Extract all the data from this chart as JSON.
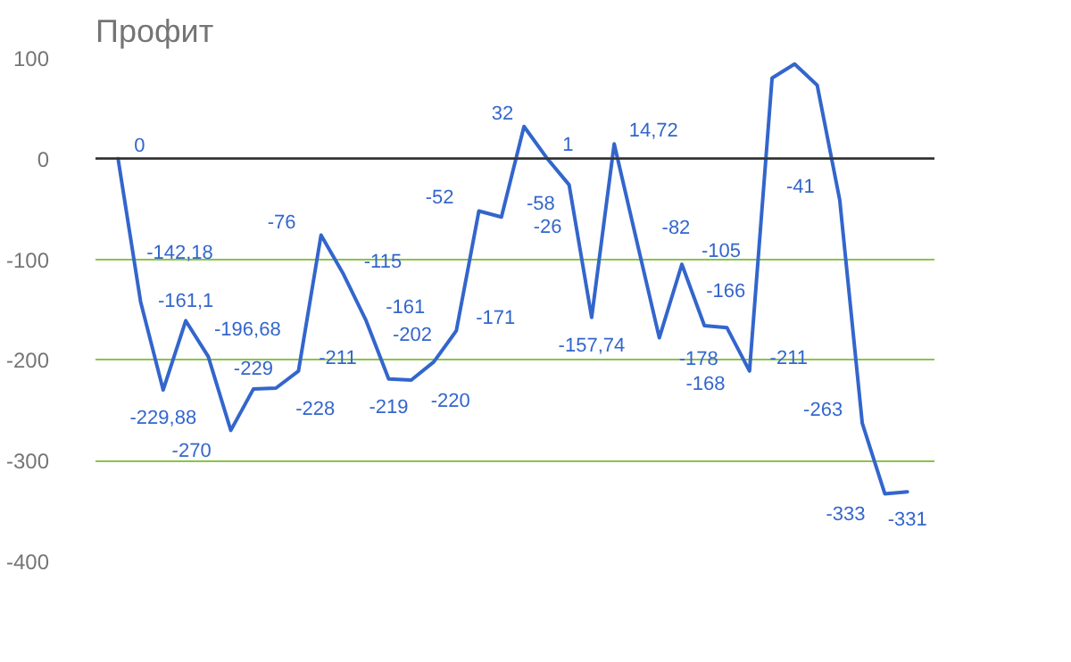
{
  "chart_data": {
    "type": "line",
    "title": "Профит",
    "categories": [
      null,
      null,
      null,
      null,
      null,
      null,
      null,
      null,
      null,
      null,
      null,
      null,
      null,
      null,
      null,
      null,
      null,
      null,
      null,
      null,
      null,
      null,
      null,
      null,
      null,
      null,
      null,
      null,
      null,
      null,
      null,
      null,
      null,
      null,
      null,
      null
    ],
    "series": [
      {
        "color": "#3366cc",
        "values": [
          0,
          -142.18,
          -229.88,
          -161.1,
          -196.68,
          -270,
          -229,
          -228,
          -211,
          -76,
          -115,
          -161,
          -219,
          -220,
          -202,
          -171,
          -52,
          -58,
          32,
          1,
          -26,
          -157.74,
          14.72,
          -82,
          -178,
          -105,
          -166,
          -168,
          -211,
          80,
          94,
          73,
          -41,
          -263,
          -333,
          -331
        ],
        "value_labels": [
          "0",
          "-142,18",
          "-229,88",
          "-161,1",
          "-196,68",
          "-270",
          "-229",
          "-228",
          "-211",
          "-76",
          "-115",
          "-161",
          "-219",
          "-220",
          "-202",
          "-171",
          "-52",
          "-58",
          "32",
          "1",
          "-26",
          "-157,74",
          "14,72",
          "-82",
          "-178",
          "-105",
          "-166",
          "-168",
          "-211",
          null,
          null,
          null,
          "-41",
          "-263",
          "-333",
          "-331"
        ]
      }
    ],
    "ylim": [
      -400,
      100
    ],
    "yticks": [
      -400,
      -300,
      -200,
      -100,
      0,
      100
    ],
    "ref_lines": [
      {
        "axis": "y",
        "value": 0,
        "color": "#333333"
      }
    ],
    "grid": "y",
    "tick_labels": "y"
  }
}
